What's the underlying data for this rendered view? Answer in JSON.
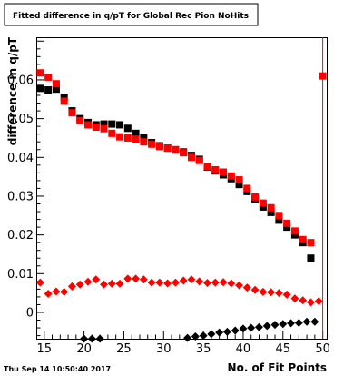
{
  "chart_data": {
    "type": "scatter",
    "title": "Fitted difference in q/pT for Global Rec Pion NoHits",
    "xlabel": "No. of Fit Points",
    "ylabel": "difference in q/pT",
    "timestamp": "Thu Sep 14 10:50:40 2017",
    "xlim": [
      14,
      50.5
    ],
    "ylim": [
      -0.0068,
      0.071
    ],
    "xticks": [
      15,
      20,
      25,
      30,
      35,
      40,
      45,
      50
    ],
    "yticks": [
      0,
      0.01,
      0.02,
      0.03,
      0.04,
      0.05,
      0.06
    ],
    "ytick_labels": [
      "0",
      "0.01",
      "0.02",
      "0.03",
      "0.04",
      "0.05",
      "0.06"
    ],
    "colors": {
      "red": "#ff0000",
      "black": "#000000"
    },
    "grid": false,
    "series": [
      {
        "marker": "square",
        "color": "#000000",
        "x": [
          14.5,
          15.5,
          16.5,
          17.5,
          18.5,
          19.5,
          20.5,
          21.5,
          22.5,
          23.5,
          24.5,
          25.5,
          26.5,
          27.5,
          28.5,
          29.5,
          30.5,
          31.5,
          32.5,
          33.5,
          34.5,
          35.5,
          36.5,
          37.5,
          38.5,
          39.5,
          40.5,
          41.5,
          42.5,
          43.5,
          44.5,
          45.5,
          46.5,
          47.5,
          48.5
        ],
        "y": [
          0.0578,
          0.0574,
          0.0576,
          0.0555,
          0.052,
          0.05,
          0.049,
          0.0484,
          0.0486,
          0.0486,
          0.0484,
          0.0475,
          0.0462,
          0.045,
          0.0438,
          0.043,
          0.0424,
          0.0419,
          0.0414,
          0.0405,
          0.0395,
          0.0375,
          0.0365,
          0.0355,
          0.0345,
          0.033,
          0.0312,
          0.0292,
          0.0272,
          0.0258,
          0.0238,
          0.022,
          0.02,
          0.018,
          0.014
        ]
      },
      {
        "marker": "square",
        "color": "#ff0000",
        "x": [
          14.5,
          15.5,
          16.5,
          17.5,
          18.5,
          19.5,
          20.5,
          21.5,
          22.5,
          23.5,
          24.5,
          25.5,
          26.5,
          27.5,
          28.5,
          29.5,
          30.5,
          31.5,
          32.5,
          33.5,
          34.5,
          35.5,
          36.5,
          37.5,
          38.5,
          39.5,
          40.5,
          41.5,
          42.5,
          43.5,
          44.5,
          45.5,
          46.5,
          47.5,
          48.5,
          50.0
        ],
        "y": [
          0.0618,
          0.0607,
          0.059,
          0.0545,
          0.0515,
          0.0495,
          0.0484,
          0.0478,
          0.0474,
          0.0462,
          0.0453,
          0.045,
          0.0447,
          0.044,
          0.0434,
          0.0428,
          0.0424,
          0.042,
          0.0412,
          0.04,
          0.0392,
          0.0377,
          0.0368,
          0.0362,
          0.0352,
          0.0342,
          0.032,
          0.0298,
          0.0282,
          0.027,
          0.025,
          0.023,
          0.021,
          0.0188,
          0.018,
          0.061
        ]
      },
      {
        "marker": "diamond",
        "color": "#ff0000",
        "x": [
          14.5,
          15.5,
          16.5,
          17.5,
          18.5,
          19.5,
          20.5,
          21.5,
          22.5,
          23.5,
          24.5,
          25.5,
          26.5,
          27.5,
          28.5,
          29.5,
          30.5,
          31.5,
          32.5,
          33.5,
          34.5,
          35.5,
          36.5,
          37.5,
          38.5,
          39.5,
          40.5,
          41.5,
          42.5,
          43.5,
          44.5,
          45.5,
          46.5,
          47.5,
          48.5,
          49.5
        ],
        "y": [
          0.0077,
          0.0048,
          0.0054,
          0.0053,
          0.0067,
          0.0072,
          0.0079,
          0.0085,
          0.0072,
          0.0074,
          0.0074,
          0.0087,
          0.0087,
          0.0085,
          0.0077,
          0.0077,
          0.0075,
          0.0077,
          0.0082,
          0.0085,
          0.008,
          0.0076,
          0.0077,
          0.0078,
          0.0075,
          0.007,
          0.0064,
          0.0058,
          0.0053,
          0.0052,
          0.005,
          0.0046,
          0.0036,
          0.0031,
          0.0026,
          0.0029
        ]
      },
      {
        "marker": "diamond",
        "color": "#000000",
        "x": [
          20.0,
          21.0,
          22.0,
          33.0,
          34.0,
          35.0,
          36.0,
          37.0,
          38.0,
          39.0,
          40.0,
          41.0,
          42.0,
          43.0,
          44.0,
          45.0,
          46.0,
          47.0,
          48.0,
          49.0
        ],
        "y": [
          -0.0068,
          -0.0068,
          -0.0068,
          -0.0066,
          -0.0062,
          -0.006,
          -0.0056,
          -0.0052,
          -0.005,
          -0.0047,
          -0.0042,
          -0.004,
          -0.0038,
          -0.0035,
          -0.0032,
          -0.003,
          -0.0028,
          -0.0027,
          -0.0024,
          -0.0024
        ]
      }
    ]
  }
}
